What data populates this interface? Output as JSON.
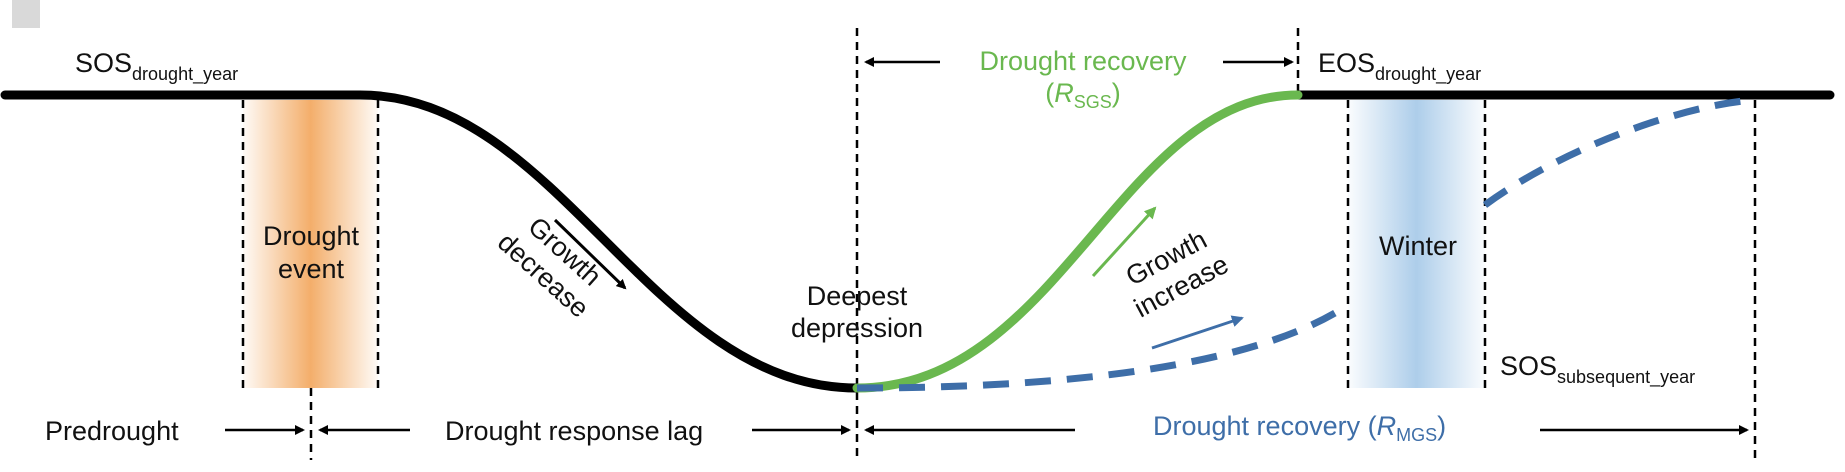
{
  "colors": {
    "curve": "#000000",
    "green_recovery": "#6ab84f",
    "blue_recovery": "#3e6ea8",
    "drought_band": "#f2a55a",
    "winter_band": "#a9cbe9"
  },
  "labels": {
    "sos_drought_main": "SOS",
    "sos_drought_sub": "drought_year",
    "eos_main": "EOS",
    "eos_sub": "drought_year",
    "sos_subsequent_main": "SOS",
    "sos_subsequent_sub": "subsequent_year",
    "drought_event_line1": "Drought",
    "drought_event_line2": "event",
    "winter": "Winter",
    "growth_decrease_line1": "Growth",
    "growth_decrease_line2": "decrease",
    "growth_increase_line1": "Growth",
    "growth_increase_line2": "increase",
    "deepest_line1": "Deepest",
    "deepest_line2": "depression",
    "predrought": "Predrought",
    "drought_response_lag": "Drought response lag",
    "recovery_sgs_title": "Drought recovery",
    "recovery_sgs_paren_open": "(",
    "recovery_sgs_R": "R",
    "recovery_sgs_sub": "SGS",
    "recovery_sgs_paren_close": ")",
    "recovery_mgs_title": "Drought recovery (",
    "recovery_mgs_R": "R",
    "recovery_mgs_sub": "MGS",
    "recovery_mgs_close": ")"
  }
}
